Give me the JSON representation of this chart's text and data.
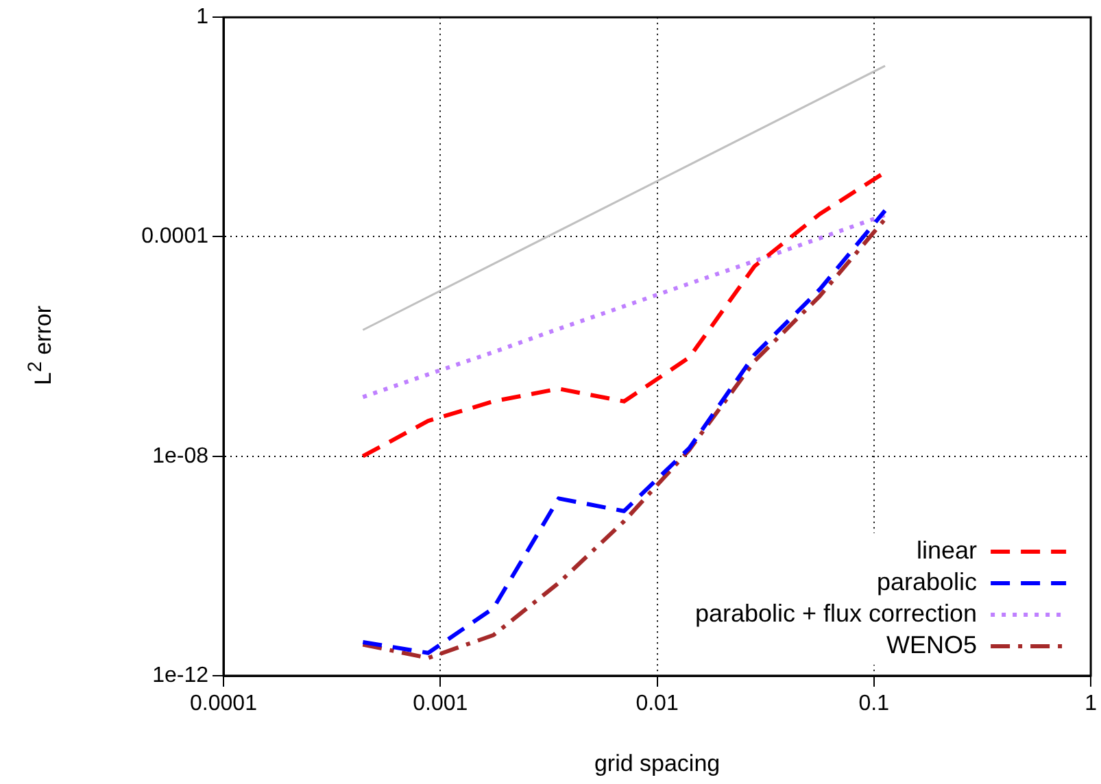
{
  "chart_data": {
    "type": "line",
    "xlabel": "grid spacing",
    "ylabel": "L$^{2}$ error",
    "x": [
      0.000439453125,
      0.00087890625,
      0.0017578125,
      0.003515625,
      0.00703125,
      0.0140625,
      0.028125,
      0.05625,
      0.1125
    ],
    "series": [
      {
        "name": "linear",
        "color": "#ff0000",
        "line_style": "dashed",
        "values": [
          1e-08,
          4.4e-08,
          1e-07,
          1.7e-07,
          1e-07,
          6.3e-07,
          2.9e-05,
          0.00026,
          0.0015
        ]
      },
      {
        "name": "parabolic",
        "color": "#0000ff",
        "line_style": "dashed",
        "values": [
          4.1e-12,
          2.6e-12,
          1.7e-11,
          1.7e-09,
          1e-09,
          1.4e-08,
          7.1e-07,
          1.1e-05,
          0.0003
        ]
      },
      {
        "name": "parabolic + flux correction",
        "color": "#bf80ff",
        "line_style": "dotted",
        "values": [
          1.2e-07,
          3.1e-07,
          7.9e-07,
          2.1e-06,
          5.4e-06,
          1.4e-05,
          3.6e-05,
          9.4e-05,
          0.00025
        ]
      },
      {
        "name": "WENO5",
        "color": "#a52a2a",
        "line_style": "dashdot",
        "values": [
          3.7e-12,
          2.1e-12,
          5.5e-12,
          4.9e-11,
          6.5e-10,
          1.3e-08,
          5.4e-07,
          8.3e-06,
          0.00021
        ]
      },
      {
        "color": "#c0c0c0",
        "line_style": "solid",
        "x": [
          0.000439453125,
          0.1125
        ],
        "values": [
          2e-06,
          0.13
        ]
      }
    ],
    "log": "xy",
    "xlim": [
      0.0001,
      1
    ],
    "ylim": [
      1e-12,
      1
    ],
    "xticks": [
      0.0001,
      0.001,
      0.01,
      0.1,
      1
    ],
    "yticks": [
      {
        "value": 1e-12,
        "label": "1e-12"
      },
      {
        "value": 1e-08,
        "label": "1e-08"
      },
      {
        "value": 0.0001,
        "label": "0.0001"
      },
      1
    ],
    "grid": true,
    "legend": "bottom right",
    "marker": "none"
  }
}
